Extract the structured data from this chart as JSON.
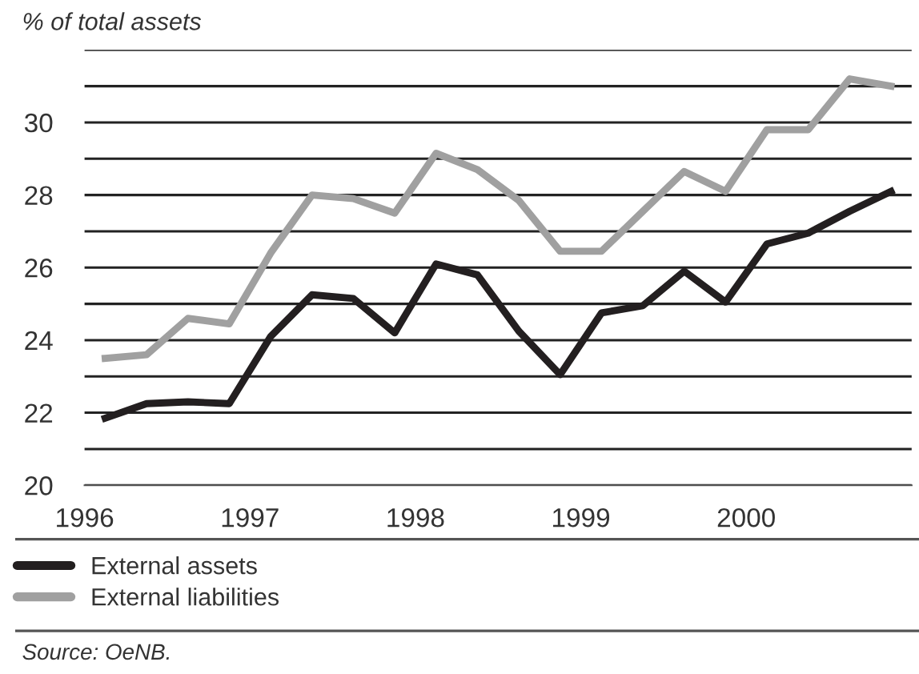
{
  "chart_data": {
    "type": "line",
    "ylabel": "% of total assets",
    "x": [
      1996.125,
      1996.375,
      1996.625,
      1996.875,
      1997.125,
      1997.375,
      1997.625,
      1997.875,
      1998.125,
      1998.375,
      1998.625,
      1998.875,
      1999.125,
      1999.375,
      1999.625,
      1999.875,
      2000.125,
      2000.375,
      2000.625,
      2000.875
    ],
    "series": [
      {
        "name": "External assets",
        "color": "#231f20",
        "values": [
          21.85,
          22.25,
          22.3,
          22.25,
          24.1,
          25.25,
          25.15,
          24.2,
          26.1,
          25.8,
          24.25,
          23.05,
          24.75,
          24.95,
          25.9,
          25.05,
          26.65,
          26.95,
          27.55,
          28.1
        ]
      },
      {
        "name": "External liabilities",
        "color": "#a0a0a0",
        "values": [
          23.5,
          23.6,
          24.6,
          24.45,
          26.4,
          28.0,
          27.9,
          27.5,
          29.15,
          28.7,
          27.85,
          26.45,
          26.45,
          27.55,
          28.65,
          28.1,
          29.8,
          29.8,
          31.2,
          31.0
        ]
      }
    ],
    "xlim": [
      1996,
      2001
    ],
    "xticks": [
      1996,
      1997,
      1998,
      1999,
      2000
    ],
    "ylim": [
      20,
      32
    ],
    "yticks": [
      20,
      {
        "value": 21,
        "label": null
      },
      22,
      {
        "value": 23,
        "label": null
      },
      24,
      {
        "value": 25,
        "label": null
      },
      26,
      {
        "value": 27,
        "label": null
      },
      28,
      {
        "value": 29,
        "label": null
      },
      30,
      {
        "value": 31,
        "label": null
      },
      {
        "value": 32,
        "label": null
      }
    ],
    "grid": "y",
    "legend": "bottom",
    "marker": "none",
    "line_style": "solid",
    "annotations": [
      "Source: OeNB."
    ]
  }
}
